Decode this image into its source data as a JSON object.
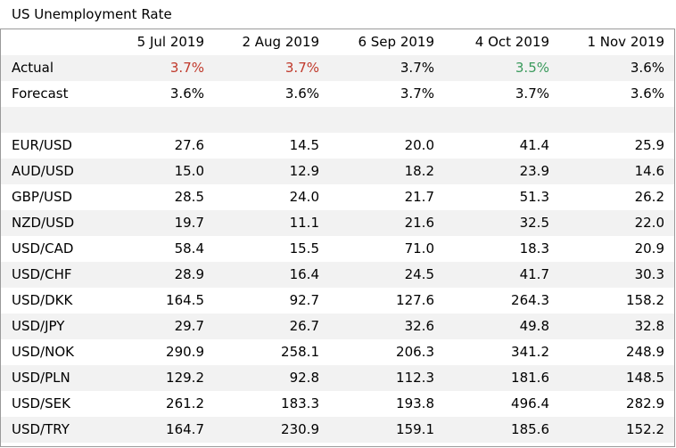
{
  "title": "US Unemployment Rate",
  "dates": [
    "5 Jul 2019",
    "2 Aug 2019",
    "6 Sep 2019",
    "4 Oct 2019",
    "1 Nov 2019"
  ],
  "actual": {
    "label": "Actual",
    "values": [
      "3.7%",
      "3.7%",
      "3.7%",
      "3.5%",
      "3.6%"
    ],
    "colors": [
      "#c0392b",
      "#c0392b",
      "#000000",
      "#3a9a5c",
      "#000000"
    ]
  },
  "forecast": {
    "label": "Forecast",
    "values": [
      "3.6%",
      "3.6%",
      "3.7%",
      "3.7%",
      "3.6%"
    ]
  },
  "pairs": [
    {
      "name": "EUR/USD",
      "values": [
        "27.6",
        "14.5",
        "20.0",
        "41.4",
        "25.9"
      ]
    },
    {
      "name": "AUD/USD",
      "values": [
        "15.0",
        "12.9",
        "18.2",
        "23.9",
        "14.6"
      ]
    },
    {
      "name": "GBP/USD",
      "values": [
        "28.5",
        "24.0",
        "21.7",
        "51.3",
        "26.2"
      ]
    },
    {
      "name": "NZD/USD",
      "values": [
        "19.7",
        "11.1",
        "21.6",
        "32.5",
        "22.0"
      ]
    },
    {
      "name": "USD/CAD",
      "values": [
        "58.4",
        "15.5",
        "71.0",
        "18.3",
        "20.9"
      ]
    },
    {
      "name": "USD/CHF",
      "values": [
        "28.9",
        "16.4",
        "24.5",
        "41.7",
        "30.3"
      ]
    },
    {
      "name": "USD/DKK",
      "values": [
        "164.5",
        "92.7",
        "127.6",
        "264.3",
        "158.2"
      ]
    },
    {
      "name": "USD/JPY",
      "values": [
        "29.7",
        "26.7",
        "32.6",
        "49.8",
        "32.8"
      ]
    },
    {
      "name": "USD/NOK",
      "values": [
        "290.9",
        "258.1",
        "206.3",
        "341.2",
        "248.9"
      ]
    },
    {
      "name": "USD/PLN",
      "values": [
        "129.2",
        "92.8",
        "112.3",
        "181.6",
        "148.5"
      ]
    },
    {
      "name": "USD/SEK",
      "values": [
        "261.2",
        "183.3",
        "193.8",
        "496.4",
        "282.9"
      ]
    },
    {
      "name": "USD/TRY",
      "values": [
        "164.7",
        "230.9",
        "159.1",
        "185.6",
        "152.2"
      ]
    }
  ]
}
